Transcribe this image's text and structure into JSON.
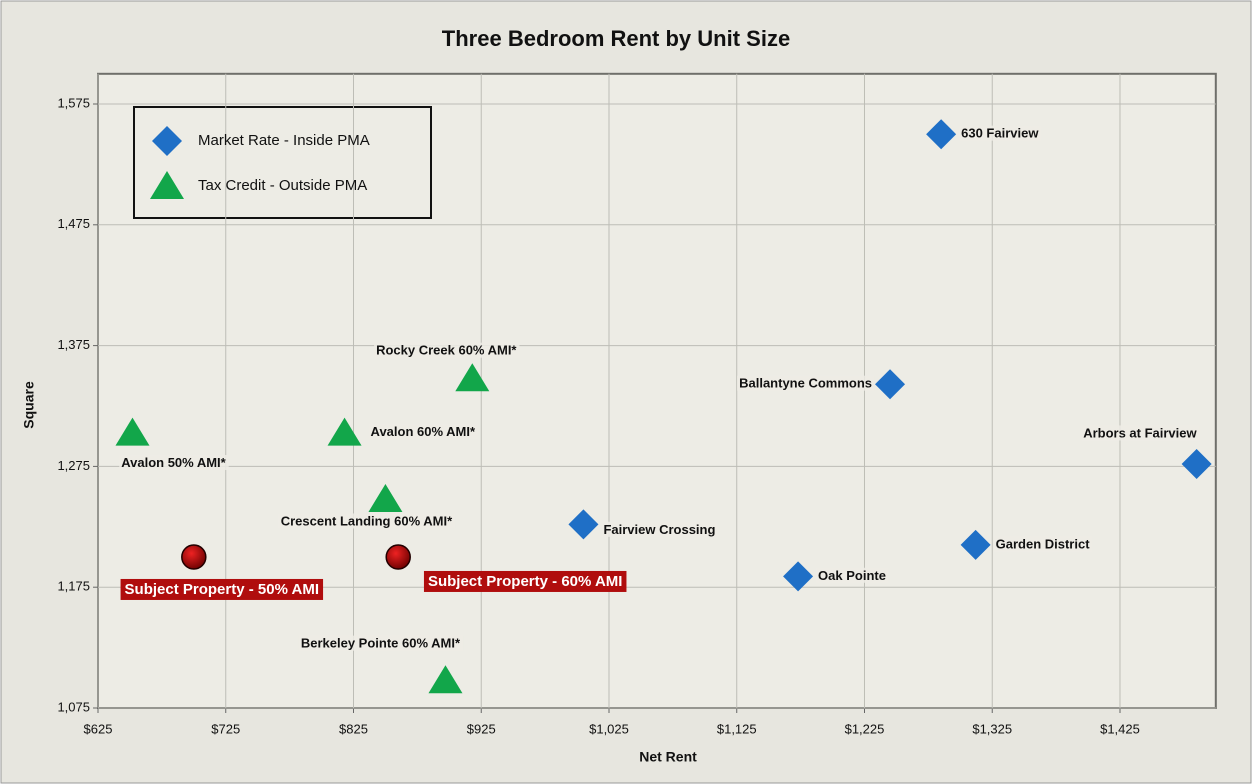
{
  "chart_data": {
    "type": "scatter",
    "title": "Three Bedroom Rent by Unit Size",
    "xlabel": "Net Rent",
    "ylabel": "Square",
    "xlim": [
      625,
      1500
    ],
    "xticks": [
      {
        "value": 625,
        "label": "$625"
      },
      {
        "value": 725,
        "label": "$725"
      },
      {
        "value": 825,
        "label": "$825"
      },
      {
        "value": 925,
        "label": "$925"
      },
      {
        "value": 1025,
        "label": "$1,025"
      },
      {
        "value": 1125,
        "label": "$1,125"
      },
      {
        "value": 1225,
        "label": "$1,225"
      },
      {
        "value": 1325,
        "label": "$1,325"
      },
      {
        "value": 1425,
        "label": "$1,425"
      }
    ],
    "ylim": [
      1075,
      1600
    ],
    "yticks": [
      {
        "value": 1075,
        "label": "1,075"
      },
      {
        "value": 1175,
        "label": "1,175"
      },
      {
        "value": 1275,
        "label": "1,275"
      },
      {
        "value": 1375,
        "label": "1,375"
      },
      {
        "value": 1475,
        "label": "1,475"
      },
      {
        "value": 1575,
        "label": "1,575"
      }
    ],
    "grid": true,
    "legend": "upper left",
    "series": [
      {
        "name": "Market Rate - Inside PMA",
        "color": "#1f6fc6",
        "marker": "diamond",
        "x": [
          1285,
          1245,
          1485,
          1005,
          1312,
          1173
        ],
        "values": [
          1550,
          1343,
          1277,
          1227,
          1210,
          1184
        ],
        "labels": [
          "630 Fairview",
          "Ballantyne Commons",
          "Arbors at Fairview",
          "Fairview Crossing",
          "Garden District",
          "Oak Pointe"
        ]
      },
      {
        "name": "Tax Credit - Outside PMA",
        "color": "#12a64a",
        "marker": "triangle",
        "x": [
          918,
          818,
          652,
          850,
          897
        ],
        "values": [
          1348,
          1303,
          1303,
          1248,
          1098
        ],
        "labels": [
          "Rocky Creek 60% AMI*",
          "Avalon 60% AMI*",
          "Avalon 50% AMI*",
          "Crescent Landing 60% AMI*",
          "Berkeley Pointe 60% AMI*"
        ]
      },
      {
        "color": "#b00d0d",
        "marker": "circle",
        "x": [
          700,
          860
        ],
        "values": [
          1200,
          1200
        ],
        "labels": [
          "Subject Property - 50% AMI",
          "Subject Property - 60% AMI"
        ]
      }
    ]
  }
}
